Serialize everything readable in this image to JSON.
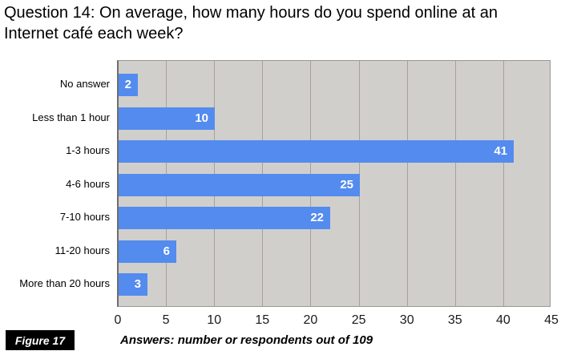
{
  "title": "Question 14: On average, how many hours do you spend online at an\nInternet café each week?",
  "figure_label": "Figure 17",
  "caption": "Answers: number or respondents out of 109",
  "chart_data": {
    "type": "bar",
    "orientation": "horizontal",
    "title": "Question 14: On average, how many hours do you spend online at an Internet café each week?",
    "categories": [
      "No answer",
      "Less than 1 hour",
      "1-3 hours",
      "4-6 hours",
      "7-10 hours",
      "11-20 hours",
      "More than 20 hours"
    ],
    "values": [
      2,
      10,
      41,
      25,
      22,
      6,
      3
    ],
    "total_respondents": 109,
    "xlabel": "",
    "ylabel": "",
    "xlim": [
      0,
      45
    ],
    "xticks": [
      0,
      5,
      10,
      15,
      20,
      25,
      30,
      35,
      40,
      45
    ],
    "grid": "vertical",
    "legend": "none",
    "data_labels": "inside-end-white-bold",
    "colors": {
      "bar": "#538bef",
      "plot_background": "#d1cfcc",
      "gridline": "#a6a19d",
      "axis_line": "#6e6e6e",
      "text": "#000000",
      "value_label": "#ffffff",
      "badge_background": "#000000",
      "badge_text": "#ffffff"
    }
  }
}
